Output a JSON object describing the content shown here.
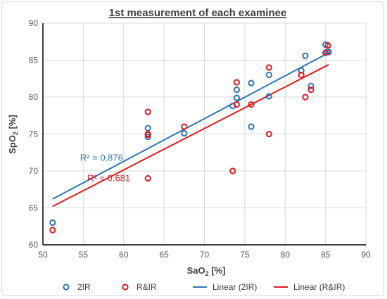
{
  "chart_data": {
    "type": "scatter",
    "title": "1st measurement of each examinee",
    "xlabel_main": "SaO",
    "xlabel_sub": "2",
    "xlabel_unit": " [%]",
    "ylabel_main": "SpO",
    "ylabel_sub": "2",
    "ylabel_unit": " [%]",
    "xlim": [
      50,
      90
    ],
    "ylim": [
      60,
      90
    ],
    "xticks": [
      50,
      55,
      60,
      65,
      70,
      75,
      80,
      85,
      90
    ],
    "yticks": [
      60,
      65,
      70,
      75,
      80,
      85,
      90
    ],
    "grid": true,
    "legend_position": "bottom",
    "series": [
      {
        "name": "2IR",
        "kind": "points",
        "color": "#2e75b6",
        "points": [
          [
            51.2,
            63
          ],
          [
            63,
            75.8
          ],
          [
            63,
            75
          ],
          [
            63,
            74.6
          ],
          [
            67.5,
            75.1
          ],
          [
            73.5,
            78.8
          ],
          [
            74,
            81
          ],
          [
            74,
            79.9
          ],
          [
            75.8,
            81.9
          ],
          [
            75.8,
            76
          ],
          [
            78,
            83
          ],
          [
            78,
            80.1
          ],
          [
            82,
            83.6
          ],
          [
            82.5,
            85.6
          ],
          [
            83.2,
            81.5
          ],
          [
            85,
            87.1
          ],
          [
            85.2,
            86.1
          ],
          [
            85.4,
            86.1
          ]
        ]
      },
      {
        "name": "R&IR",
        "kind": "points",
        "color": "#e31a1c",
        "points": [
          [
            51.2,
            62
          ],
          [
            63,
            78
          ],
          [
            63,
            75
          ],
          [
            63,
            74.9
          ],
          [
            63,
            69
          ],
          [
            67.5,
            76
          ],
          [
            73.5,
            70
          ],
          [
            74,
            82
          ],
          [
            74,
            79
          ],
          [
            75.8,
            79
          ],
          [
            78,
            84
          ],
          [
            78,
            75
          ],
          [
            82,
            83
          ],
          [
            82.5,
            80
          ],
          [
            83.2,
            81
          ],
          [
            85,
            86
          ],
          [
            85.3,
            87
          ]
        ]
      },
      {
        "name": "Linear (2IR)",
        "kind": "trendline",
        "color": "#2e75b6",
        "x": [
          51.2,
          85.4
        ],
        "y": [
          66.2,
          86.0
        ]
      },
      {
        "name": "Linear (R&IR)",
        "kind": "trendline",
        "color": "#e31a1c",
        "x": [
          51.2,
          85.4
        ],
        "y": [
          65.2,
          84.4
        ]
      }
    ],
    "annotations": [
      {
        "text": "R² = 0.876",
        "color": "#2e75b6",
        "x": 54.6,
        "y": 71.4
      },
      {
        "text": "R² = 0.681",
        "color": "#e31a1c",
        "x": 55.5,
        "y": 68.6
      }
    ]
  }
}
